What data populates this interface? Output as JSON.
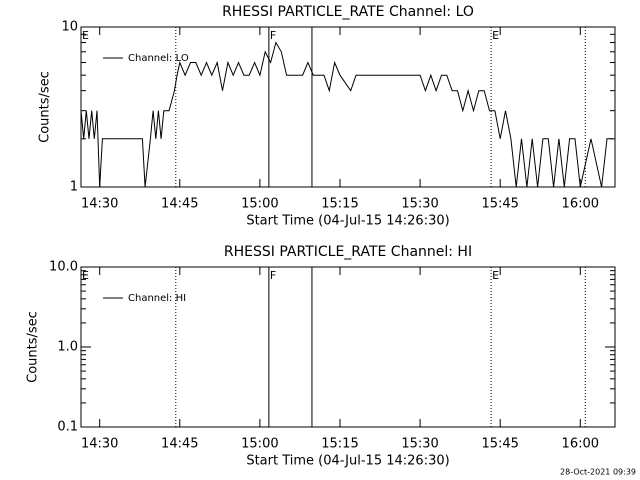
{
  "chart_data": [
    {
      "type": "line",
      "title": "RHESSI PARTICLE_RATE Channel: LO",
      "x_label": "Start Time (04-Jul-15 14:26:30)",
      "y_label": "Counts/sec",
      "log_y": true,
      "xlim": [
        "14:26:30",
        "16:06:30"
      ],
      "ylim": [
        1,
        10
      ],
      "xticks": [
        "14:30",
        "14:45",
        "15:00",
        "15:15",
        "15:30",
        "15:45",
        "16:00"
      ],
      "yticks": [
        1,
        10
      ],
      "markers": [
        {
          "x": "14:26:30",
          "label": "E",
          "style": "none"
        },
        {
          "x": "14:44:15",
          "style": "dotted"
        },
        {
          "x": "15:01:41",
          "label": "F",
          "style": "solid"
        },
        {
          "x": "15:09:45",
          "style": "solid"
        },
        {
          "x": "15:43:18",
          "label": "E",
          "style": "dotted"
        },
        {
          "x": "16:00:56",
          "style": "dotted"
        }
      ],
      "series": [
        {
          "name": "Channel: LO",
          "color": "#000000",
          "x": [
            "14:26:30",
            "14:27:00",
            "14:27:30",
            "14:28:00",
            "14:28:30",
            "14:29:00",
            "14:29:30",
            "14:30:00",
            "14:30:30",
            "14:31:00",
            "14:35:00",
            "14:38:00",
            "14:38:30",
            "14:39:30",
            "14:40:00",
            "14:40:30",
            "14:41:00",
            "14:41:30",
            "14:42:00",
            "14:43:00",
            "14:44:00",
            "14:44:30",
            "14:45:00",
            "14:46:00",
            "14:47:00",
            "14:48:00",
            "14:49:00",
            "14:50:00",
            "14:51:00",
            "14:52:00",
            "14:53:00",
            "14:54:00",
            "14:55:00",
            "14:56:00",
            "14:57:00",
            "14:58:00",
            "14:59:00",
            "15:00:00",
            "15:01:00",
            "15:02:00",
            "15:03:00",
            "15:04:00",
            "15:05:00",
            "15:06:00",
            "15:07:00",
            "15:08:00",
            "15:09:00",
            "15:10:00",
            "15:12:00",
            "15:13:00",
            "15:14:00",
            "15:15:00",
            "15:17:00",
            "15:18:00",
            "15:20:00",
            "15:25:00",
            "15:30:00",
            "15:31:00",
            "15:32:00",
            "15:33:00",
            "15:34:00",
            "15:35:00",
            "15:36:00",
            "15:37:00",
            "15:38:00",
            "15:39:00",
            "15:40:00",
            "15:41:00",
            "15:42:00",
            "15:43:00",
            "15:44:00",
            "15:45:00",
            "15:46:00",
            "15:47:00",
            "15:48:00",
            "15:49:00",
            "15:50:00",
            "15:51:00",
            "15:52:00",
            "15:53:00",
            "15:54:00",
            "15:55:00",
            "15:56:00",
            "15:57:00",
            "15:58:00",
            "15:59:00",
            "16:00:00",
            "16:02:00",
            "16:04:00",
            "16:05:00",
            "16:06:00"
          ],
          "values": [
            3,
            2,
            3,
            2,
            3,
            2,
            3,
            1,
            2,
            2,
            2,
            2,
            1,
            2,
            3,
            2,
            3,
            2,
            3,
            3,
            4,
            5,
            6,
            5,
            6,
            6,
            5,
            6,
            5,
            6,
            4,
            6,
            5,
            6,
            5,
            5,
            6,
            5,
            7,
            6,
            8,
            7,
            5,
            5,
            5,
            5,
            6,
            5,
            5,
            4,
            6,
            5,
            4,
            5,
            5,
            5,
            5,
            4,
            5,
            4,
            5,
            5,
            4,
            4,
            3,
            4,
            3,
            4,
            4,
            3,
            3,
            2,
            3,
            2,
            1,
            2,
            1,
            2,
            1,
            2,
            2,
            1,
            2,
            1,
            2,
            2,
            1,
            2,
            1,
            2,
            2
          ]
        }
      ]
    },
    {
      "type": "line",
      "title": "RHESSI PARTICLE_RATE Channel: HI",
      "x_label": "Start Time (04-Jul-15 14:26:30)",
      "y_label": "Counts/sec",
      "log_y": true,
      "xlim": [
        "14:26:30",
        "16:06:30"
      ],
      "ylim": [
        0.1,
        10
      ],
      "xticks": [
        "14:30",
        "14:45",
        "15:00",
        "15:15",
        "15:30",
        "15:45",
        "16:00"
      ],
      "yticks": [
        0.1,
        {
          "value": 1,
          "label": "1.0"
        },
        {
          "value": 10,
          "label": "10.0"
        }
      ],
      "markers": [
        {
          "x": "14:26:30",
          "label": "E",
          "style": "none"
        },
        {
          "x": "14:44:15",
          "style": "dotted"
        },
        {
          "x": "15:01:41",
          "label": "F",
          "style": "solid"
        },
        {
          "x": "15:09:45",
          "style": "solid"
        },
        {
          "x": "15:43:18",
          "label": "E",
          "style": "dotted"
        },
        {
          "x": "16:00:56",
          "style": "dotted"
        }
      ],
      "series": [
        {
          "name": "Channel: HI",
          "color": "#000000",
          "x": [],
          "values": []
        }
      ]
    }
  ],
  "footer": "28-Oct-2021 09:39"
}
